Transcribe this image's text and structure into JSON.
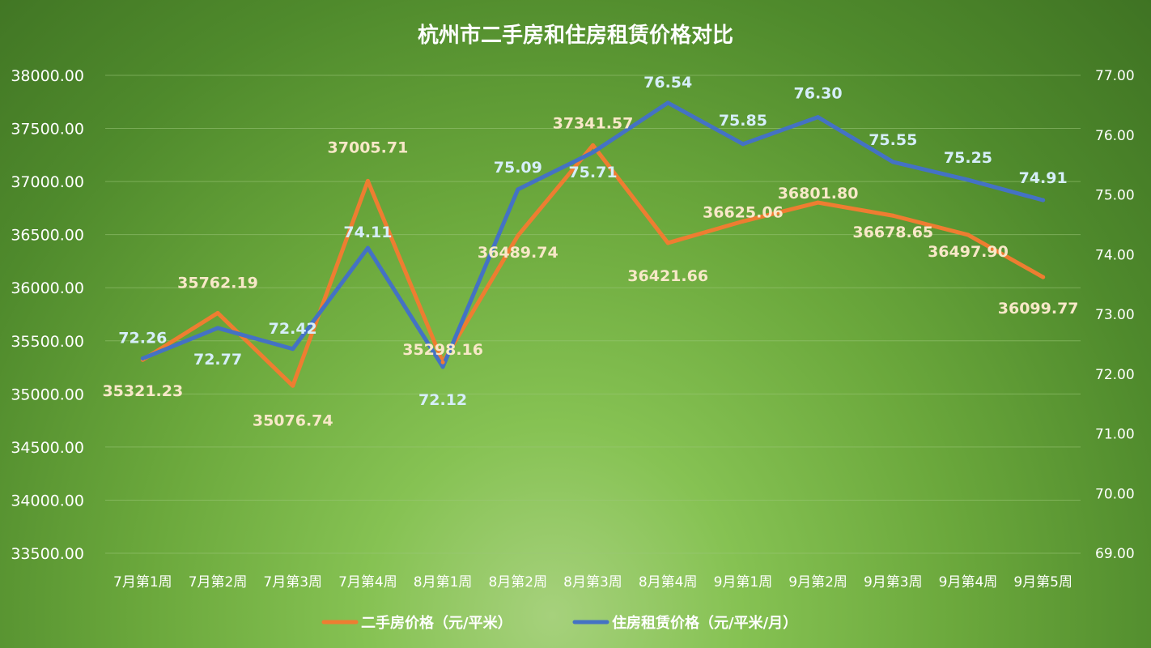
{
  "chart_data": {
    "type": "line",
    "title": "杭州市二手房和住房租赁价格对比",
    "categories": [
      "7月第1周",
      "7月第2周",
      "7月第3周",
      "7月第4周",
      "8月第1周",
      "8月第2周",
      "8月第3周",
      "8月第4周",
      "9月第1周",
      "9月第2周",
      "9月第3周",
      "9月第4周",
      "9月第5周"
    ],
    "series": [
      {
        "name": "二手房价格（元/平米）",
        "axis": "left",
        "color": "#ee7d31",
        "values": [
          35321.23,
          35762.19,
          35076.74,
          37005.71,
          35298.16,
          36489.74,
          37341.57,
          36421.66,
          36625.06,
          36801.8,
          36678.65,
          36497.9,
          36099.77
        ],
        "labels": [
          "35321.23",
          "35762.19",
          "35076.74",
          "37005.71",
          "35298.16",
          "36489.74",
          "37341.57",
          "36421.66",
          "36625.06",
          "36801.80",
          "36678.65",
          "36497.90",
          "36099.77"
        ]
      },
      {
        "name": "住房租赁价格（元/平米/月）",
        "axis": "right",
        "color": "#4472c4",
        "values": [
          72.26,
          72.77,
          72.42,
          74.11,
          72.12,
          75.09,
          75.71,
          76.54,
          75.85,
          76.3,
          75.55,
          75.25,
          74.91
        ],
        "labels": [
          "72.26",
          "72.77",
          "72.42",
          "74.11",
          "72.12",
          "75.09",
          "75.71",
          "76.54",
          "75.85",
          "76.30",
          "75.55",
          "75.25",
          "74.91"
        ]
      }
    ],
    "y_left": {
      "ylim": [
        33500,
        38000
      ],
      "ticks": [
        "33500.00",
        "34000.00",
        "34500.00",
        "35000.00",
        "35500.00",
        "36000.00",
        "36500.00",
        "37000.00",
        "37500.00",
        "38000.00"
      ]
    },
    "y_right": {
      "ylim": [
        69.0,
        77.0
      ],
      "ticks": [
        "69.00",
        "70.00",
        "71.00",
        "72.00",
        "73.00",
        "74.00",
        "75.00",
        "76.00",
        "77.00"
      ]
    },
    "grid": true,
    "legend_position": "bottom"
  }
}
